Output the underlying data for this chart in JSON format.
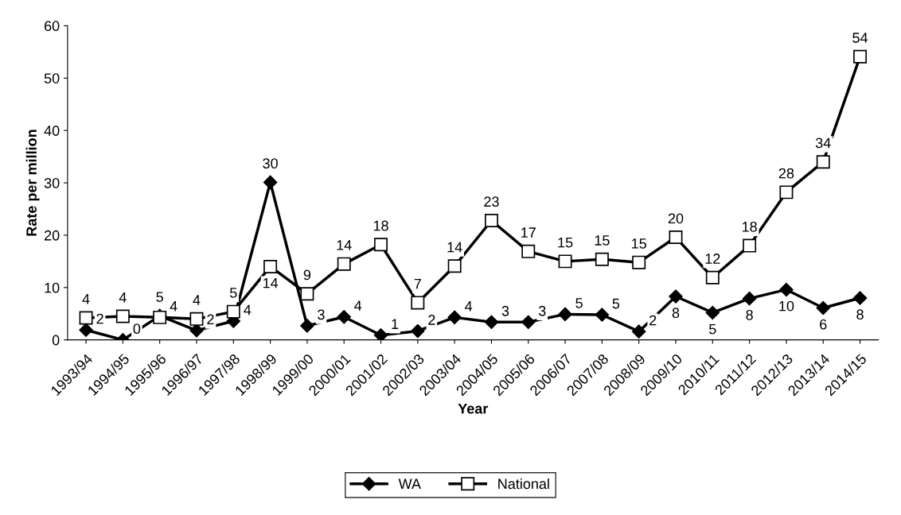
{
  "chart_data": {
    "type": "line",
    "xlabel": "Year",
    "ylabel": "Rate per million",
    "categories": [
      "1993/94",
      "1994/95",
      "1995/96",
      "1996/97",
      "1997/98",
      "1998/99",
      "1999/00",
      "2000/01",
      "2001/02",
      "2002/03",
      "2003/04",
      "2004/05",
      "2005/06",
      "2006/07",
      "2007/08",
      "2008/09",
      "2009/10",
      "2010/11",
      "2011/12",
      "2012/13",
      "2013/14",
      "2014/15"
    ],
    "series": [
      {
        "name": "WA",
        "color": "#000000",
        "marker": "diamond",
        "values": [
          1.9,
          0,
          4.6,
          1.8,
          3.6,
          30.1,
          2.7,
          4.4,
          0.9,
          1.7,
          4.3,
          3.4,
          3.4,
          4.9,
          4.8,
          1.6,
          8.3,
          5.2,
          7.9,
          9.6,
          6.1,
          8.0
        ],
        "value_labels": [
          "2",
          "0",
          "5",
          "2",
          "4",
          "30",
          "3",
          "4",
          "1",
          "2",
          "4",
          "3",
          "3",
          "5",
          "5",
          "2",
          "8",
          "5",
          "8",
          "10",
          "6",
          "8"
        ]
      },
      {
        "name": "National",
        "color": "#000000",
        "marker": "square",
        "values": [
          4.2,
          4.5,
          4.3,
          4.0,
          5.4,
          14.0,
          8.8,
          14.5,
          18.2,
          7.1,
          14.1,
          22.8,
          16.9,
          15.0,
          15.4,
          14.8,
          19.6,
          11.9,
          18.0,
          28.2,
          34.0,
          54.1
        ],
        "value_labels": [
          "4",
          "4",
          "4",
          "4",
          "5",
          "14",
          "9",
          "14",
          "18",
          "7",
          "14",
          "23",
          "17",
          "15",
          "15",
          "15",
          "20",
          "12",
          "18",
          "28",
          "34",
          "54"
        ]
      }
    ],
    "ylim": [
      0,
      60
    ],
    "yticks": [
      0,
      10,
      20,
      30,
      40,
      50,
      60
    ],
    "grid": false,
    "legend": "bottom",
    "line_style": "solid"
  }
}
